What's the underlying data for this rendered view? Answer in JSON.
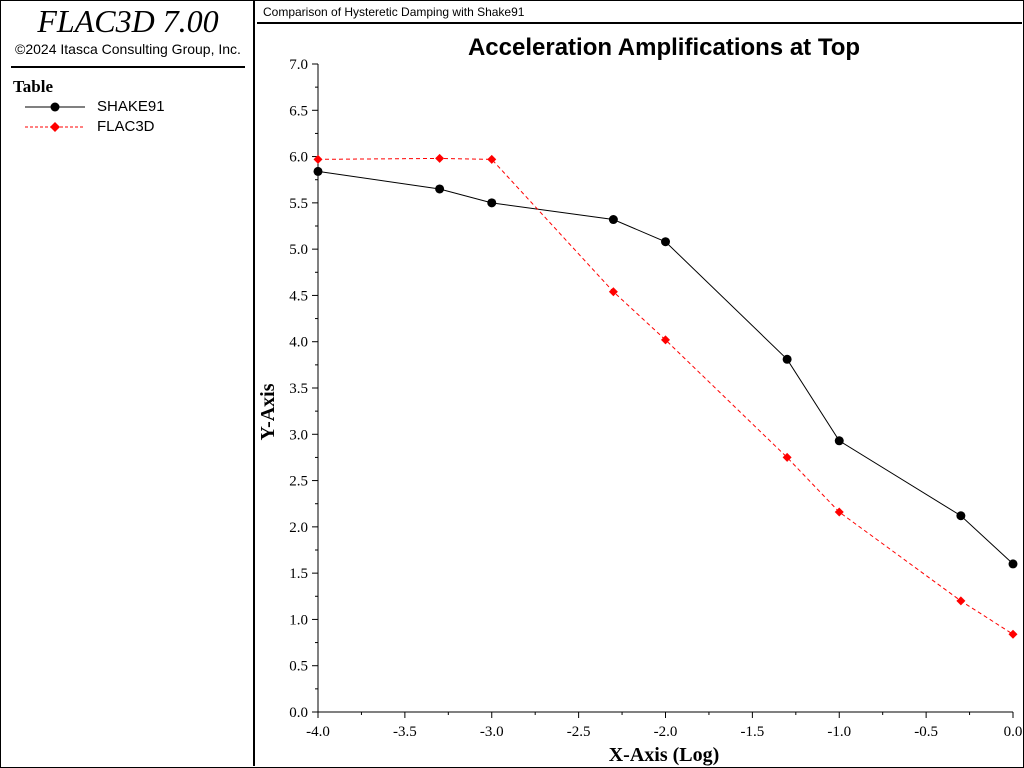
{
  "app": {
    "title": "FLAC3D 7.00",
    "copyright": "©2024 Itasca Consulting Group, Inc."
  },
  "legend": {
    "title": "Table",
    "entries": [
      {
        "label": "SHAKE91",
        "color": "#000000",
        "dashed": false
      },
      {
        "label": "FLAC3D",
        "color": "#ff0000",
        "dashed": true
      }
    ]
  },
  "header": {
    "title": "Comparison of Hysteretic Damping with Shake91"
  },
  "chart_data": {
    "type": "line",
    "title": "Acceleration Amplifications at Top",
    "xlabel": "X-Axis (Log)",
    "ylabel": "Y-Axis",
    "xlim": [
      -4.0,
      0.0
    ],
    "ylim": [
      0.0,
      7.0
    ],
    "xticks": [
      -4.0,
      -3.5,
      -3.0,
      -2.5,
      -2.0,
      -1.5,
      -1.0,
      -0.5,
      0.0
    ],
    "yticks": [
      0.0,
      0.5,
      1.0,
      1.5,
      2.0,
      2.5,
      3.0,
      3.5,
      4.0,
      4.5,
      5.0,
      5.5,
      6.0,
      6.5,
      7.0
    ],
    "xtick_labels": [
      "-4.0",
      "-3.5",
      "-3.0",
      "-2.5",
      "-2.0",
      "-1.5",
      "-1.0",
      "-0.5",
      "0.0"
    ],
    "ytick_labels": [
      "0.0",
      "0.5",
      "1.0",
      "1.5",
      "2.0",
      "2.5",
      "3.0",
      "3.5",
      "4.0",
      "4.5",
      "5.0",
      "5.5",
      "6.0",
      "6.5",
      "7.0"
    ],
    "grid": false,
    "series": [
      {
        "name": "SHAKE91",
        "color": "#000000",
        "dashed": false,
        "marker": "circle",
        "x": [
          -4.0,
          -3.3,
          -3.0,
          -2.3,
          -2.0,
          -1.3,
          -1.0,
          -0.3,
          0.0
        ],
        "y": [
          5.84,
          5.65,
          5.5,
          5.32,
          5.08,
          3.81,
          2.93,
          2.12,
          1.6
        ]
      },
      {
        "name": "FLAC3D",
        "color": "#ff0000",
        "dashed": true,
        "marker": "diamond",
        "x": [
          -4.0,
          -3.3,
          -3.0,
          -2.3,
          -2.0,
          -1.3,
          -1.0,
          -0.3,
          0.0
        ],
        "y": [
          5.97,
          5.98,
          5.97,
          4.54,
          4.02,
          2.75,
          2.16,
          1.2,
          0.84
        ]
      }
    ]
  }
}
